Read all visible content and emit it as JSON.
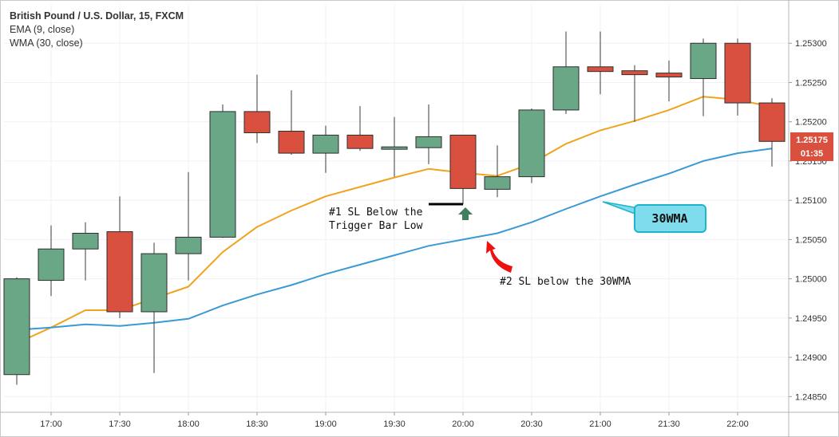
{
  "legend": {
    "title": "British Pound / U.S. Dollar, 15, FXCM",
    "ema": "EMA (9, close)",
    "wma": "WMA (30, close)"
  },
  "colors": {
    "bull": "#6aa787",
    "bear": "#d9503f",
    "ema": "#f0a31c",
    "wma": "#3a9ad6",
    "callout_fill": "#7fdcec",
    "callout_border": "#1fb5c9",
    "price_tag": "#d9503f",
    "arrow_green": "#3f7f5e",
    "arrow_red": "#ee1111"
  },
  "current_price_tag": {
    "price": "1.25175",
    "countdown": "01:35"
  },
  "annotations": {
    "sl1_line1": "#1 SL Below the",
    "sl1_line2": "Trigger Bar Low",
    "sl2": "#2 SL below the 30WMA",
    "wma_callout": "30WMA"
  },
  "chart_data": {
    "type": "candlestick",
    "title": "British Pound / U.S. Dollar, 15, FXCM",
    "ylim": [
      1.2483,
      1.2535
    ],
    "y_ticks": [
      "1.24850",
      "1.24900",
      "1.24950",
      "1.25000",
      "1.25050",
      "1.25100",
      "1.25150",
      "1.25200",
      "1.25250",
      "1.25300"
    ],
    "x_ticks": [
      "17:00",
      "17:30",
      "18:00",
      "18:30",
      "19:00",
      "19:30",
      "20:00",
      "20:30",
      "21:00",
      "21:30",
      "22:00"
    ],
    "candles": [
      {
        "t": "16:45",
        "o": 1.24878,
        "h": 1.25002,
        "l": 1.24865,
        "c": 1.25
      },
      {
        "t": "17:00",
        "o": 1.24998,
        "h": 1.25068,
        "l": 1.24978,
        "c": 1.25038
      },
      {
        "t": "17:15",
        "o": 1.25038,
        "h": 1.25072,
        "l": 1.24998,
        "c": 1.25058
      },
      {
        "t": "17:30",
        "o": 1.2506,
        "h": 1.25105,
        "l": 1.2495,
        "c": 1.24958
      },
      {
        "t": "17:45",
        "o": 1.24958,
        "h": 1.25046,
        "l": 1.2488,
        "c": 1.25032
      },
      {
        "t": "18:00",
        "o": 1.25032,
        "h": 1.25136,
        "l": 1.24998,
        "c": 1.25053
      },
      {
        "t": "18:15",
        "o": 1.25053,
        "h": 1.25222,
        "l": 1.25052,
        "c": 1.25213
      },
      {
        "t": "18:30",
        "o": 1.25213,
        "h": 1.2526,
        "l": 1.25173,
        "c": 1.25186
      },
      {
        "t": "18:45",
        "o": 1.25188,
        "h": 1.2524,
        "l": 1.25158,
        "c": 1.2516
      },
      {
        "t": "19:00",
        "o": 1.2516,
        "h": 1.25195,
        "l": 1.25135,
        "c": 1.25183
      },
      {
        "t": "19:15",
        "o": 1.25183,
        "h": 1.2522,
        "l": 1.25163,
        "c": 1.25166
      },
      {
        "t": "19:30",
        "o": 1.25166,
        "h": 1.25206,
        "l": 1.2513,
        "c": 1.25167
      },
      {
        "t": "19:45",
        "o": 1.25167,
        "h": 1.25222,
        "l": 1.25146,
        "c": 1.25181
      },
      {
        "t": "20:00",
        "o": 1.25183,
        "h": 1.25183,
        "l": 1.25095,
        "c": 1.25115
      },
      {
        "t": "20:15",
        "o": 1.25114,
        "h": 1.2517,
        "l": 1.25104,
        "c": 1.2513
      },
      {
        "t": "20:30",
        "o": 1.2513,
        "h": 1.25217,
        "l": 1.25122,
        "c": 1.25215
      },
      {
        "t": "20:45",
        "o": 1.25215,
        "h": 1.25315,
        "l": 1.2521,
        "c": 1.2527
      },
      {
        "t": "21:00",
        "o": 1.2527,
        "h": 1.25315,
        "l": 1.25235,
        "c": 1.25264
      },
      {
        "t": "21:15",
        "o": 1.25265,
        "h": 1.25272,
        "l": 1.252,
        "c": 1.2526
      },
      {
        "t": "21:30",
        "o": 1.25262,
        "h": 1.25278,
        "l": 1.25226,
        "c": 1.25257
      },
      {
        "t": "21:45",
        "o": 1.25255,
        "h": 1.25306,
        "l": 1.25207,
        "c": 1.253
      },
      {
        "t": "22:00",
        "o": 1.253,
        "h": 1.25306,
        "l": 1.25208,
        "c": 1.25224
      },
      {
        "t": "22:15",
        "o": 1.25224,
        "h": 1.2523,
        "l": 1.25143,
        "c": 1.25175
      }
    ],
    "series": [
      {
        "name": "EMA (9, close)",
        "values": [
          1.24918,
          1.24938,
          1.2496,
          1.2496,
          1.24975,
          1.2499,
          1.25034,
          1.25066,
          1.25087,
          1.25105,
          1.25117,
          1.25129,
          1.2514,
          1.25135,
          1.25131,
          1.25147,
          1.25172,
          1.25189,
          1.25201,
          1.25215,
          1.25232,
          1.25228,
          1.25219
        ]
      },
      {
        "name": "WMA (30, close)",
        "values": [
          1.24935,
          1.24938,
          1.24942,
          1.2494,
          1.24944,
          1.24949,
          1.24966,
          1.2498,
          1.24992,
          1.25006,
          1.25018,
          1.2503,
          1.25042,
          1.2505,
          1.25058,
          1.25072,
          1.25089,
          1.25105,
          1.2512,
          1.25134,
          1.2515,
          1.2516,
          1.25166
        ]
      }
    ]
  }
}
